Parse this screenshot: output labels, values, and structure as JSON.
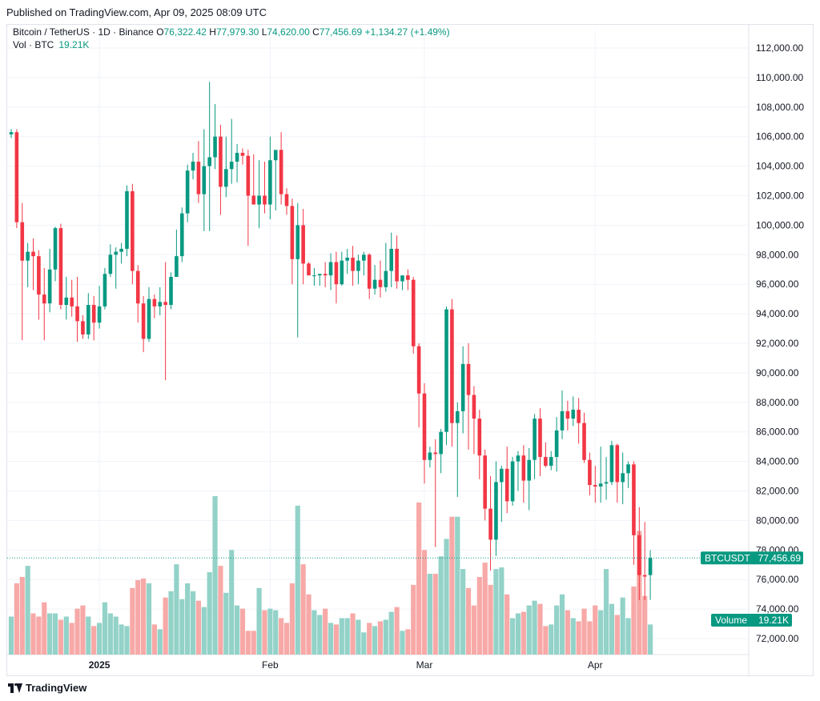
{
  "header": {
    "published": "Published on TradingView.com, Apr 09, 2025 08:09 UTC"
  },
  "legend": {
    "symbol": "Bitcoin / TetherUS · 1D · Binance",
    "o_label": "O",
    "o_value": "76,322.42",
    "h_label": "H",
    "h_value": "77,979.30",
    "l_label": "L",
    "l_value": "74,620.00",
    "c_label": "C",
    "c_value": "77,456.69",
    "change": "+1,134.27 (+1.49%)",
    "vol_label": "Vol · BTC",
    "vol_value": "19.21K"
  },
  "footer": {
    "brand": "TradingView"
  },
  "colors": {
    "up": "#089981",
    "down": "#f23645",
    "up_vol": "#93d2c8",
    "down_vol": "#f7a9a7",
    "grid": "#f0f3fa"
  },
  "chart_data": {
    "type": "candlestick",
    "ylim": [
      70800,
      113000
    ],
    "yticks": [
      "112,000.00",
      "110,000.00",
      "108,000.00",
      "106,000.00",
      "104,000.00",
      "102,000.00",
      "100,000.00",
      "98,000.00",
      "96,000.00",
      "94,000.00",
      "92,000.00",
      "90,000.00",
      "88,000.00",
      "86,000.00",
      "84,000.00",
      "82,000.00",
      "80,000.00",
      "78,000.00",
      "76,000.00",
      "74,000.00",
      "72,000.00"
    ],
    "x_labels": [
      {
        "label": "2025",
        "index": 16
      },
      {
        "label": "Feb",
        "index": 47
      },
      {
        "label": "Mar",
        "index": 75
      },
      {
        "label": "Apr",
        "index": 106
      }
    ],
    "last_price_label": "BTCUSDT",
    "last_price_value": "77,456.69",
    "volume_label": "Volume",
    "volume_value": "19.21K",
    "candles": [
      [
        106150,
        106500,
        105900,
        106300,
        24
      ],
      [
        106300,
        106500,
        99800,
        100200,
        45
      ],
      [
        100200,
        101500,
        92200,
        97600,
        49
      ],
      [
        97600,
        98800,
        95800,
        98200,
        56
      ],
      [
        98200,
        99100,
        95600,
        97900,
        26
      ],
      [
        97900,
        98300,
        93600,
        95300,
        24
      ],
      [
        95300,
        97100,
        92200,
        94700,
        33
      ],
      [
        94700,
        98400,
        94100,
        97000,
        26
      ],
      [
        97000,
        99900,
        96200,
        99800,
        26
      ],
      [
        99800,
        100100,
        94300,
        94600,
        22
      ],
      [
        94600,
        96500,
        93600,
        95100,
        24
      ],
      [
        95100,
        96300,
        93800,
        94500,
        20
      ],
      [
        94500,
        96500,
        92100,
        93500,
        29
      ],
      [
        93500,
        93900,
        92300,
        92600,
        31
      ],
      [
        92600,
        95400,
        92300,
        94600,
        24
      ],
      [
        94600,
        95200,
        92200,
        93400,
        18
      ],
      [
        93400,
        95900,
        93000,
        94500,
        20
      ],
      [
        94500,
        97100,
        94300,
        96700,
        33
      ],
      [
        96700,
        98700,
        96500,
        98000,
        26
      ],
      [
        98000,
        98500,
        95700,
        98200,
        24
      ],
      [
        98200,
        98800,
        97400,
        98400,
        19
      ],
      [
        98400,
        102700,
        97900,
        102300,
        18
      ],
      [
        102300,
        102800,
        96000,
        96900,
        42
      ],
      [
        96900,
        97300,
        93400,
        94700,
        47
      ],
      [
        94700,
        95200,
        91400,
        92300,
        48
      ],
      [
        92300,
        95800,
        92100,
        95000,
        45
      ],
      [
        95000,
        95300,
        93700,
        94500,
        19
      ],
      [
        94500,
        95800,
        93900,
        94800,
        16
      ],
      [
        94800,
        97500,
        89500,
        94600,
        36
      ],
      [
        94600,
        96800,
        94300,
        96500,
        40
      ],
      [
        96500,
        99700,
        96500,
        97900,
        57
      ],
      [
        97900,
        101200,
        97500,
        100800,
        35
      ],
      [
        100800,
        104100,
        100200,
        103700,
        45
      ],
      [
        103700,
        104900,
        103100,
        104300,
        40
      ],
      [
        104300,
        105700,
        101500,
        102100,
        34
      ],
      [
        102100,
        106500,
        99600,
        104000,
        30
      ],
      [
        104000,
        109700,
        99600,
        104600,
        52
      ],
      [
        104600,
        108200,
        103800,
        106000,
        100
      ],
      [
        106000,
        106800,
        100700,
        102600,
        56
      ],
      [
        102600,
        106000,
        101900,
        103800,
        39
      ],
      [
        103800,
        107200,
        102800,
        104300,
        66
      ],
      [
        104300,
        105500,
        102900,
        104900,
        31
      ],
      [
        104900,
        105200,
        104100,
        104700,
        29
      ],
      [
        104700,
        105100,
        98600,
        102000,
        15
      ],
      [
        102000,
        104800,
        101500,
        101400,
        15
      ],
      [
        101400,
        104400,
        99800,
        102000,
        42
      ],
      [
        102000,
        104300,
        100800,
        101400,
        28
      ],
      [
        101400,
        106000,
        100400,
        104400,
        29
      ],
      [
        104400,
        104700,
        101000,
        105100,
        28
      ],
      [
        105100,
        106300,
        101400,
        102100,
        23
      ],
      [
        102100,
        102500,
        100700,
        101300,
        20
      ],
      [
        101300,
        101800,
        96000,
        97700,
        45
      ],
      [
        97700,
        101500,
        92400,
        100000,
        94
      ],
      [
        100000,
        101100,
        96000,
        97400,
        57
      ],
      [
        97400,
        97500,
        96800,
        96600,
        38
      ],
      [
        96600,
        97100,
        95900,
        96600,
        28
      ],
      [
        96600,
        96700,
        95900,
        96700,
        25
      ],
      [
        96700,
        97500,
        95800,
        96600,
        29
      ],
      [
        96600,
        98100,
        95600,
        97500,
        20
      ],
      [
        97500,
        98200,
        94700,
        96000,
        19
      ],
      [
        96000,
        98200,
        95900,
        97600,
        23
      ],
      [
        97600,
        98400,
        96700,
        97800,
        23
      ],
      [
        97800,
        98600,
        95900,
        96900,
        26
      ],
      [
        96900,
        98000,
        96000,
        97600,
        22
      ],
      [
        97600,
        98200,
        96600,
        98000,
        14
      ],
      [
        98000,
        98100,
        95000,
        95700,
        20
      ],
      [
        95700,
        97300,
        95300,
        96300,
        18
      ],
      [
        96300,
        97600,
        95100,
        95800,
        21
      ],
      [
        95800,
        98800,
        95500,
        96900,
        22
      ],
      [
        96900,
        99500,
        95800,
        98400,
        27
      ],
      [
        98400,
        99300,
        95700,
        96200,
        30
      ],
      [
        96200,
        96500,
        95600,
        96600,
        15
      ],
      [
        96600,
        97000,
        95600,
        96300,
        16
      ],
      [
        96300,
        96500,
        91300,
        91800,
        44
      ],
      [
        91800,
        92000,
        86300,
        88600,
        96
      ],
      [
        88600,
        89300,
        82500,
        84100,
        66
      ],
      [
        84100,
        85000,
        83600,
        84600,
        51
      ],
      [
        84600,
        85500,
        78200,
        84500,
        51
      ],
      [
        84500,
        86200,
        83200,
        86000,
        62
      ],
      [
        86000,
        94500,
        85100,
        94300,
        73
      ],
      [
        94300,
        95000,
        85000,
        86600,
        87
      ],
      [
        86600,
        88000,
        81600,
        87400,
        87
      ],
      [
        87400,
        91800,
        85900,
        90600,
        54
      ],
      [
        90600,
        92000,
        84800,
        88500,
        42
      ],
      [
        88500,
        89100,
        84500,
        86900,
        31
      ],
      [
        86900,
        87500,
        82800,
        84400,
        49
      ],
      [
        84400,
        84800,
        80000,
        80800,
        58
      ],
      [
        80800,
        83000,
        76600,
        78700,
        44
      ],
      [
        78700,
        84000,
        77600,
        82600,
        54
      ],
      [
        82600,
        83700,
        79900,
        83500,
        55
      ],
      [
        83500,
        85000,
        80500,
        81300,
        38
      ],
      [
        81300,
        84300,
        81000,
        84000,
        23
      ],
      [
        84000,
        84700,
        82000,
        84400,
        26
      ],
      [
        84400,
        85100,
        81200,
        82700,
        27
      ],
      [
        82700,
        84900,
        80700,
        84100,
        31
      ],
      [
        84100,
        87200,
        82800,
        86900,
        34
      ],
      [
        86900,
        87600,
        83000,
        84300,
        32
      ],
      [
        84300,
        85300,
        83600,
        83700,
        18
      ],
      [
        83700,
        84700,
        83400,
        84300,
        19
      ],
      [
        84300,
        87000,
        83300,
        86100,
        31
      ],
      [
        86100,
        88800,
        85500,
        87400,
        38
      ],
      [
        87400,
        88100,
        86100,
        86900,
        28
      ],
      [
        86900,
        88400,
        86400,
        87500,
        23
      ],
      [
        87500,
        88300,
        85200,
        86600,
        21
      ],
      [
        86600,
        87300,
        83900,
        84100,
        29
      ],
      [
        84100,
        84600,
        81700,
        82400,
        21
      ],
      [
        82400,
        83700,
        81200,
        82300,
        31
      ],
      [
        82300,
        85000,
        81200,
        82500,
        28
      ],
      [
        82500,
        84300,
        81400,
        82600,
        54
      ],
      [
        82600,
        85400,
        82400,
        85100,
        32
      ],
      [
        85100,
        85200,
        81200,
        82600,
        25
      ],
      [
        82600,
        84600,
        81100,
        83200,
        36
      ],
      [
        83200,
        84000,
        82200,
        83800,
        23
      ],
      [
        83800,
        84000,
        77000,
        79000,
        43
      ],
      [
        79000,
        80900,
        74600,
        76300,
        78
      ],
      [
        76300,
        79900,
        74600,
        76200,
        37
      ],
      [
        76300,
        77980,
        74620,
        77460,
        19
      ]
    ]
  }
}
